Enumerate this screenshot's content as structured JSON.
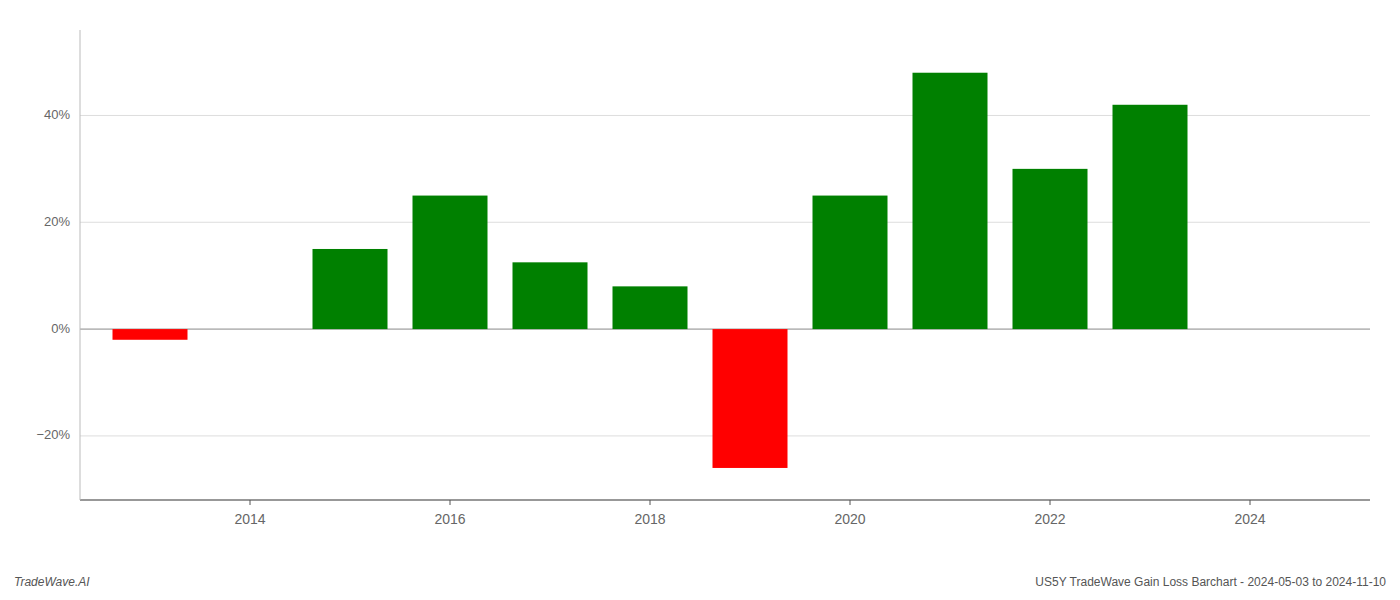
{
  "chart_data": {
    "type": "bar",
    "x": [
      2013,
      2015,
      2016,
      2017,
      2018,
      2019,
      2020,
      2021,
      2022,
      2023
    ],
    "values": [
      -2.0,
      15.0,
      25.0,
      12.5,
      8.0,
      -26.0,
      25.0,
      48.0,
      30.0,
      42.0
    ],
    "colors": [
      "#ff0000",
      "#008000",
      "#008000",
      "#008000",
      "#008000",
      "#ff0000",
      "#008000",
      "#008000",
      "#008000",
      "#008000"
    ],
    "xlim": [
      2012.3,
      2025.2
    ],
    "xticks": [
      2014,
      2016,
      2018,
      2020,
      2022,
      2024
    ],
    "ylim": [
      -32,
      56
    ],
    "yticks": [
      {
        "value": -20,
        "label": "−20%"
      },
      {
        "value": 0,
        "label": "0%"
      },
      {
        "value": 20,
        "label": "20%"
      },
      {
        "value": 40,
        "label": "40%"
      }
    ],
    "grid": true,
    "annotations": [
      "TradeWave.AI",
      "US5Y TradeWave Gain Loss Barchart - 2024-05-03 to 2024-11-10"
    ]
  }
}
